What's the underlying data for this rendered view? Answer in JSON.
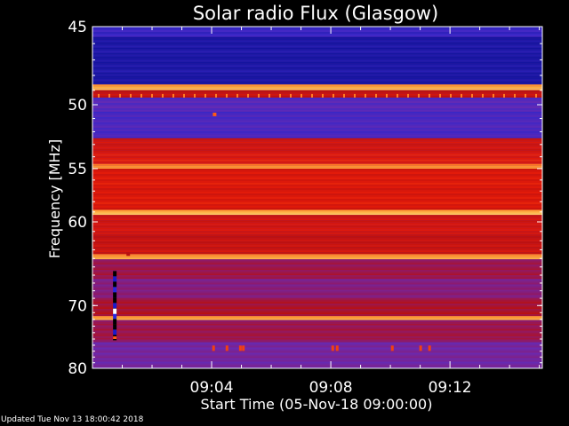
{
  "chart_data": {
    "type": "heatmap",
    "title": "Solar radio Flux (Glasgow)",
    "xlabel": "Start Time (05-Nov-18 09:00:00)",
    "ylabel": "Frequency [MHz]",
    "x_tick_labels": [
      "09:04",
      "09:08",
      "09:12"
    ],
    "x_tick_values_min": [
      4,
      8,
      12
    ],
    "x_range_min": [
      0,
      15.1
    ],
    "y_tick_labels": [
      "45",
      "50",
      "55",
      "60",
      "70",
      "80"
    ],
    "y_tick_values_mhz": [
      45,
      50,
      55,
      60,
      70,
      80
    ],
    "y_range_mhz": [
      45,
      80
    ],
    "y_scale": "reciprocal",
    "colormap": [
      "#14149e",
      "#3c28c8",
      "#6a2ab0",
      "#8e1a6a",
      "#b81010",
      "#e21a0a",
      "#ff5a14",
      "#ffae3c",
      "#fff2a0"
    ],
    "bands_mhz": [
      {
        "f0": 45.0,
        "f1": 45.6,
        "level": 0.12
      },
      {
        "f0": 45.6,
        "f1": 48.6,
        "level": 0.02
      },
      {
        "f0": 48.6,
        "f1": 49.0,
        "level": 0.88
      },
      {
        "f0": 49.0,
        "f1": 49.5,
        "level": 0.55
      },
      {
        "f0": 49.5,
        "f1": 50.5,
        "level": 0.2
      },
      {
        "f0": 50.5,
        "f1": 52.5,
        "level": 0.16
      },
      {
        "f0": 52.5,
        "f1": 53.5,
        "level": 0.58
      },
      {
        "f0": 53.5,
        "f1": 54.6,
        "level": 0.62
      },
      {
        "f0": 54.6,
        "f1": 55.0,
        "level": 0.84
      },
      {
        "f0": 55.0,
        "f1": 58.8,
        "level": 0.6
      },
      {
        "f0": 58.8,
        "f1": 59.3,
        "level": 0.9
      },
      {
        "f0": 59.3,
        "f1": 61.5,
        "level": 0.58
      },
      {
        "f0": 61.5,
        "f1": 63.5,
        "level": 0.55
      },
      {
        "f0": 63.5,
        "f1": 64.1,
        "level": 0.86
      },
      {
        "f0": 64.1,
        "f1": 66.5,
        "level": 0.42
      },
      {
        "f0": 66.5,
        "f1": 69.0,
        "level": 0.34
      },
      {
        "f0": 69.0,
        "f1": 71.5,
        "level": 0.46
      },
      {
        "f0": 71.5,
        "f1": 72.1,
        "level": 0.88
      },
      {
        "f0": 72.1,
        "f1": 75.5,
        "level": 0.42
      },
      {
        "f0": 75.5,
        "f1": 80.0,
        "level": 0.28
      }
    ],
    "features": [
      {
        "kind": "spot",
        "t_min": 4.1,
        "f_mhz": 50.7,
        "level": 0.75
      },
      {
        "kind": "spot",
        "t_min": 1.2,
        "f_mhz": 63.5,
        "level": 0.5
      },
      {
        "kind": "streak",
        "t_min": 0.75,
        "f0_mhz": 65.5,
        "f1_mhz": 75.0
      },
      {
        "kind": "bursts",
        "f_mhz": 76.5,
        "t_min": [
          4.05,
          4.5,
          4.95,
          5.05,
          8.05,
          8.2,
          10.05,
          11.0,
          11.3
        ]
      }
    ]
  },
  "footer": {
    "updated": "Updated Tue Nov 13 18:00:42 2018"
  }
}
